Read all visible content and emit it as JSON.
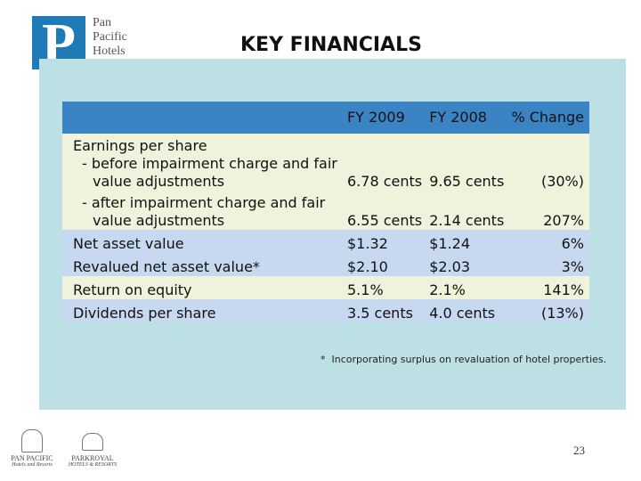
{
  "logo": {
    "letter": "P",
    "lines": [
      "Pan",
      "Pacific",
      "Hotels"
    ]
  },
  "title": "KEY FINANCIALS",
  "table": {
    "columns": [
      "FY 2009",
      "FY 2008",
      "% Change"
    ],
    "group": {
      "label": "Earnings per share",
      "rows": [
        {
          "label": "- before impairment charge and fair value adjustments",
          "values": [
            "6.78 cents",
            "9.65 cents",
            "(30%)"
          ]
        },
        {
          "label": "- after impairment charge and fair value adjustments",
          "values": [
            "6.55 cents",
            "2.14 cents",
            "207%"
          ]
        }
      ]
    },
    "rows": [
      {
        "label": "Net asset value",
        "values": [
          "$1.32",
          "$1.24",
          "6%"
        ]
      },
      {
        "label": "Revalued net asset value*",
        "values": [
          "$2.10",
          "$2.03",
          "3%"
        ]
      },
      {
        "label": "Return on equity",
        "values": [
          "5.1%",
          "2.1%",
          "141%"
        ]
      },
      {
        "label": "Dividends per share",
        "values": [
          "3.5 cents",
          "4.0 cents",
          "(13%)"
        ]
      }
    ]
  },
  "footnote": "*  Incorporating surplus on revaluation of hotel properties.",
  "page_number": "23",
  "brands": [
    {
      "name": "PAN PACIFIC",
      "tagline": "Hotels and Resorts"
    },
    {
      "name": "PARKROYAL",
      "tagline": "HOTELS & RESORTS"
    }
  ]
}
